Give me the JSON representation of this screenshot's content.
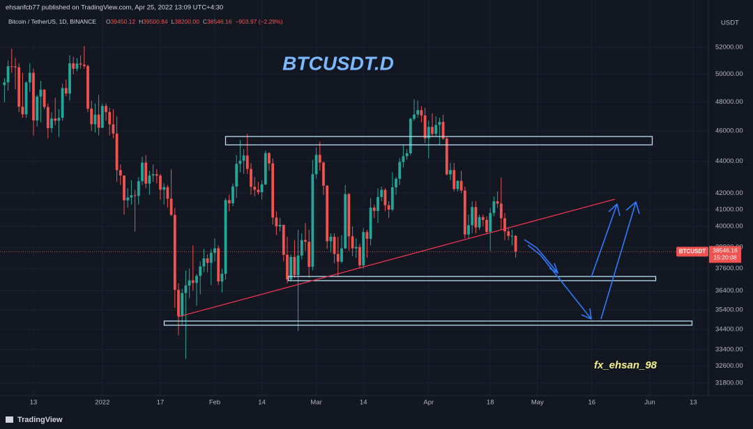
{
  "chart_data": {
    "type": "candlestick",
    "publisher_line": "ehsanfcb77 published on TradingView.com, Apr 25, 2022 13:09 UTC+4:30",
    "legend": {
      "symbol": "Bitcoin / TetherUS, 1D, BINANCE",
      "items": [
        {
          "key": "O",
          "value": "39450.12"
        },
        {
          "key": "H",
          "value": "39500.84"
        },
        {
          "key": "L",
          "value": "38200.00"
        },
        {
          "key": "C",
          "value": "38546.16"
        }
      ],
      "change": "−903.97 (−2.29%)"
    },
    "annotations": {
      "title": "BTCUSDT.D",
      "signature": "fx_ehsan_98"
    },
    "price_label": {
      "symbol": "BTCUSDT",
      "countdown": "15:20:08"
    },
    "axis_unit": "USDT",
    "footer": "TradingView",
    "log_scale": true,
    "grid": true,
    "up_color": "#26a69a",
    "down_color": "#ef5350",
    "ylim": [
      31250,
      54500
    ],
    "yticks": [
      {
        "value": 31800,
        "label": "31800.00"
      },
      {
        "value": 32600,
        "label": "32600.00"
      },
      {
        "value": 33400,
        "label": "33400.00"
      },
      {
        "value": 34400,
        "label": "34400.00"
      },
      {
        "value": 35400,
        "label": "35400.00"
      },
      {
        "value": 36400,
        "label": "36400.00"
      },
      {
        "value": 37600,
        "label": "37600.00"
      },
      {
        "value": 38800,
        "label": "38800.00"
      },
      {
        "value": 40000,
        "label": "40000.00"
      },
      {
        "value": 41000,
        "label": "41000.00"
      },
      {
        "value": 42000,
        "label": "42000.00"
      },
      {
        "value": 44000,
        "label": "44000.00"
      },
      {
        "value": 46000,
        "label": "46000.00"
      },
      {
        "value": 48000,
        "label": "48000.00"
      },
      {
        "value": 50000,
        "label": "50000.00"
      },
      {
        "value": 52000,
        "label": "52000.00"
      }
    ],
    "categories": [
      null,
      null,
      null,
      null,
      null,
      null,
      null,
      null,
      "13",
      null,
      null,
      null,
      null,
      null,
      null,
      null,
      null,
      null,
      null,
      null,
      null,
      null,
      null,
      null,
      null,
      null,
      null,
      "2022",
      null,
      null,
      null,
      null,
      null,
      null,
      null,
      null,
      null,
      null,
      null,
      null,
      null,
      null,
      null,
      "17",
      null,
      null,
      null,
      null,
      null,
      null,
      null,
      null,
      null,
      null,
      null,
      null,
      null,
      null,
      "Feb",
      null,
      null,
      null,
      null,
      null,
      null,
      null,
      null,
      null,
      null,
      null,
      null,
      "14",
      null,
      null,
      null,
      null,
      null,
      null,
      null,
      null,
      null,
      null,
      null,
      null,
      null,
      null,
      "Mar",
      null,
      null,
      null,
      null,
      null,
      null,
      null,
      null,
      null,
      null,
      null,
      null,
      "14",
      null,
      null,
      null,
      null,
      null,
      null,
      null,
      null,
      null,
      null,
      null,
      null,
      null,
      null,
      null,
      null,
      null,
      "Apr",
      null,
      null,
      null,
      null,
      null,
      null,
      null,
      null,
      null,
      null,
      null,
      null,
      null,
      null,
      null,
      null,
      "18",
      null,
      null,
      null,
      null,
      null,
      null,
      null,
      null,
      null,
      null,
      null,
      null,
      "May",
      null,
      null,
      null,
      null,
      null,
      null,
      null,
      null,
      null,
      null,
      null,
      null,
      null,
      null,
      "16",
      null,
      null,
      null,
      null,
      null,
      null,
      null,
      null,
      null,
      null,
      null,
      null,
      null,
      null,
      null,
      "Jun",
      null,
      null,
      null,
      null,
      null,
      null,
      null,
      null,
      null,
      null,
      null,
      "13",
      null,
      null,
      null
    ],
    "open": [
      49200,
      49400,
      50580,
      50570,
      50500,
      47670,
      47140,
      49390,
      50100,
      46720,
      48380,
      48880,
      47650,
      46200,
      46850,
      46700,
      46900,
      48990,
      48600,
      50800,
      50400,
      50780,
      50700,
      50600,
      47540,
      46460,
      47120,
      46220,
      47720,
      47300,
      46450,
      45830,
      43440,
      43100,
      41560,
      41730,
      41870,
      41830,
      42740,
      43920,
      42590,
      43100,
      43180,
      43090,
      42210,
      42370,
      41660,
      40680,
      36450,
      35070,
      36280,
      36680,
      36960,
      36820,
      37200,
      37720,
      38170,
      37920,
      38480,
      38740,
      36900,
      37320,
      41570,
      41380,
      42410,
      43840,
      44040,
      44380,
      43520,
      42390,
      42210,
      42050,
      42540,
      44540,
      43870,
      40520,
      40000,
      40090,
      38370,
      37010,
      38250,
      37250,
      38330,
      39210,
      39110,
      37700,
      43180,
      44420,
      43920,
      42460,
      39140,
      39400,
      38420,
      37990,
      38730,
      41940,
      39420,
      38730,
      38810,
      37780,
      39670,
      39280,
      41120,
      40920,
      41760,
      42200,
      41260,
      41000,
      42360,
      42890,
      43960,
      44330,
      44530,
      46830,
      47130,
      47430,
      47070,
      45510,
      46280,
      45810,
      46410,
      46620,
      45500,
      43170,
      43440,
      42250,
      42760,
      42160,
      39530,
      40070,
      41150,
      39940,
      40550,
      40380,
      39680,
      40800,
      41500,
      41360,
      40480,
      39710,
      39450,
      39450.12,
      null,
      null,
      null,
      null,
      null,
      null,
      null,
      null,
      null,
      null,
      null,
      null,
      null,
      null,
      null,
      null,
      null,
      null,
      null,
      null,
      null,
      null,
      null,
      null,
      null,
      null,
      null,
      null,
      null,
      null,
      null,
      null,
      null,
      null,
      null,
      null,
      null,
      null,
      null,
      null,
      null,
      null,
      null,
      null,
      null,
      null,
      null,
      null,
      null,
      null,
      null,
      null
    ],
    "high": [
      49700,
      51000,
      51900,
      51200,
      50800,
      50100,
      49500,
      50800,
      50400,
      48500,
      49500,
      48900,
      47900,
      47300,
      48300,
      47500,
      49300,
      49600,
      51400,
      51300,
      51200,
      51400,
      52100,
      50700,
      48100,
      47900,
      48500,
      47900,
      47900,
      47600,
      47500,
      47000,
      43800,
      43100,
      42300,
      42800,
      42200,
      43000,
      44300,
      44400,
      43400,
      43800,
      43500,
      43200,
      42600,
      42500,
      43500,
      41100,
      36800,
      36500,
      37500,
      37600,
      38900,
      37300,
      38000,
      38700,
      38400,
      38700,
      39300,
      38900,
      37600,
      41700,
      41900,
      42600,
      44400,
      45400,
      44800,
      45820,
      43900,
      43000,
      42700,
      42800,
      44700,
      44600,
      44200,
      40900,
      40500,
      40100,
      39400,
      38400,
      39200,
      39800,
      39600,
      40200,
      39800,
      44100,
      44900,
      45300,
      44000,
      42500,
      39600,
      39600,
      39400,
      39500,
      42500,
      42000,
      40000,
      39300,
      39000,
      39900,
      39800,
      41700,
      41300,
      42300,
      42400,
      42300,
      41500,
      43300,
      43000,
      44200,
      45100,
      44800,
      46900,
      48190,
      48100,
      47700,
      47600,
      46700,
      47200,
      47000,
      46900,
      47100,
      45600,
      43900,
      43900,
      42800,
      43400,
      42400,
      40700,
      41500,
      41500,
      40700,
      40700,
      40600,
      41100,
      41800,
      42100,
      42970,
      40800,
      39900,
      39800,
      39500.84,
      null,
      null,
      null,
      null,
      null,
      null,
      null,
      null,
      null,
      null,
      null,
      null,
      null,
      null,
      null,
      null,
      null,
      null,
      null,
      null,
      null,
      null,
      null,
      null,
      null,
      null,
      null,
      null,
      null,
      null,
      null,
      null,
      null,
      null,
      null,
      null,
      null,
      null,
      null,
      null,
      null,
      null,
      null,
      null,
      null,
      null,
      null,
      null,
      null,
      null,
      null,
      null
    ],
    "low": [
      48000,
      48800,
      50100,
      48900,
      47300,
      46900,
      46900,
      48700,
      45700,
      46300,
      46600,
      47500,
      45500,
      45900,
      46400,
      45600,
      46700,
      48400,
      48100,
      50000,
      50200,
      50400,
      50400,
      47300,
      46000,
      45900,
      45700,
      46200,
      46700,
      45700,
      45500,
      42700,
      42500,
      40700,
      41100,
      41300,
      39700,
      41300,
      42500,
      42300,
      41900,
      42700,
      42600,
      41600,
      41300,
      41100,
      40600,
      35500,
      34100,
      34600,
      32950,
      36000,
      36400,
      35600,
      36200,
      37400,
      37400,
      36700,
      38000,
      36700,
      36300,
      37000,
      40900,
      41200,
      41700,
      43300,
      43200,
      43200,
      41900,
      41800,
      41900,
      41600,
      42500,
      43400,
      40100,
      39500,
      39700,
      38000,
      36800,
      36900,
      37100,
      34320,
      38100,
      38600,
      37100,
      37500,
      42900,
      43400,
      41900,
      38700,
      38500,
      37900,
      37200,
      37900,
      38700,
      38600,
      38300,
      38200,
      37600,
      37600,
      38200,
      38900,
      40500,
      40200,
      41500,
      40900,
      40500,
      40900,
      41900,
      42500,
      43600,
      44100,
      44400,
      46700,
      46900,
      46600,
      45200,
      44200,
      45600,
      45600,
      45100,
      45400,
      43100,
      42800,
      42100,
      42100,
      42000,
      39300,
      39300,
      39600,
      39600,
      39800,
      40000,
      39600,
      38600,
      40600,
      41100,
      39800,
      39200,
      39200,
      38900,
      38200,
      null,
      null,
      null,
      null,
      null,
      null,
      null,
      null,
      null,
      null,
      null,
      null,
      null,
      null,
      null,
      null,
      null,
      null,
      null,
      null,
      null,
      null,
      null,
      null,
      null,
      null,
      null,
      null,
      null,
      null,
      null,
      null,
      null,
      null,
      null,
      null,
      null,
      null,
      null,
      null,
      null,
      null,
      null,
      null,
      null,
      null,
      null,
      null,
      null,
      null,
      null,
      null
    ],
    "close": [
      49400,
      50580,
      50570,
      50500,
      47670,
      47140,
      49390,
      50100,
      46720,
      48380,
      48880,
      47650,
      46200,
      46850,
      46700,
      46900,
      48990,
      48600,
      50800,
      50400,
      50780,
      50700,
      50600,
      47540,
      46460,
      47120,
      46220,
      47720,
      47300,
      46450,
      45830,
      43440,
      43100,
      41560,
      41730,
      41870,
      41830,
      42740,
      43920,
      42590,
      43100,
      43180,
      43090,
      42210,
      42370,
      41660,
      40680,
      36450,
      35070,
      36280,
      36680,
      36960,
      36820,
      37200,
      37720,
      38170,
      37920,
      38480,
      38740,
      36900,
      37320,
      41570,
      41380,
      42410,
      43840,
      44040,
      44380,
      43520,
      42390,
      42210,
      42050,
      42540,
      44540,
      43870,
      40520,
      40000,
      40090,
      38370,
      37010,
      38250,
      37250,
      38330,
      39210,
      39110,
      37700,
      43180,
      44420,
      43920,
      42460,
      39140,
      39400,
      38420,
      37990,
      38730,
      41940,
      39420,
      38730,
      38810,
      37780,
      39670,
      39280,
      41120,
      40920,
      41760,
      42200,
      41260,
      41000,
      42360,
      42890,
      43960,
      44330,
      44530,
      46830,
      47130,
      47430,
      47070,
      45510,
      46280,
      45810,
      46410,
      46620,
      45500,
      43170,
      43440,
      42250,
      42760,
      42160,
      39530,
      40070,
      41150,
      39940,
      40550,
      40380,
      39680,
      40800,
      41500,
      41360,
      40480,
      39710,
      39450,
      39450.12,
      38546.16,
      null,
      null,
      null,
      null,
      null,
      null,
      null,
      null,
      null,
      null,
      null,
      null,
      null,
      null,
      null,
      null,
      null,
      null,
      null,
      null,
      null,
      null,
      null,
      null,
      null,
      null,
      null,
      null,
      null,
      null,
      null,
      null,
      null,
      null,
      null,
      null,
      null,
      null,
      null,
      null,
      null,
      null,
      null,
      null,
      null,
      null,
      null,
      null,
      null,
      null,
      null,
      null
    ]
  }
}
